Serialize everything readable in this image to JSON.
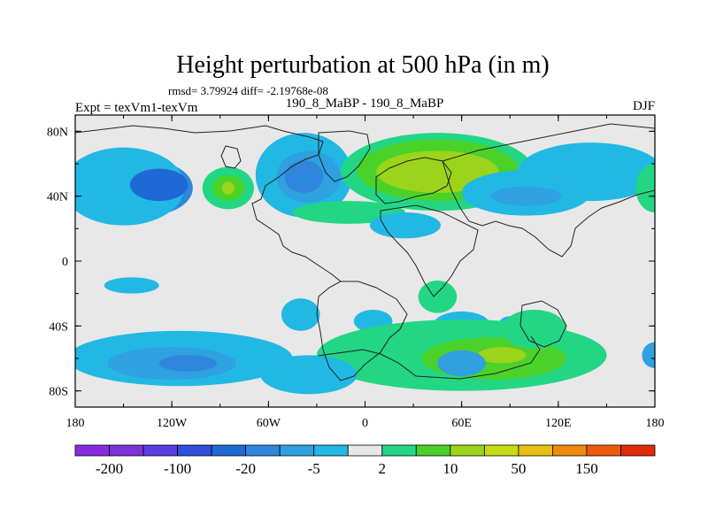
{
  "chart_data": {
    "type": "heatmap",
    "title": "Height perturbation at 500 hPa (in m)",
    "stats_line": "rmsd= 3.79924 diff= -2.19768e-08",
    "left_label": "Expt = texVm1-texVm",
    "center_label": "190_8_MaBP - 190_8_MaBP",
    "right_label": "DJF",
    "x_range": [
      -180,
      180
    ],
    "y_range": [
      -90,
      90
    ],
    "x_ticks": [
      {
        "value": -180,
        "label": "180"
      },
      {
        "value": -120,
        "label": "120W"
      },
      {
        "value": -60,
        "label": "60W"
      },
      {
        "value": 0,
        "label": "0"
      },
      {
        "value": 60,
        "label": "60E"
      },
      {
        "value": 120,
        "label": "120E"
      },
      {
        "value": 180,
        "label": "180"
      }
    ],
    "y_ticks": [
      {
        "value": 80,
        "label": "80N"
      },
      {
        "value": 40,
        "label": "40N"
      },
      {
        "value": 0,
        "label": "0"
      },
      {
        "value": -40,
        "label": "40S"
      },
      {
        "value": -80,
        "label": "80S"
      }
    ],
    "colorbar": {
      "colors": [
        "#8a2be2",
        "#7b32d9",
        "#5a3ce0",
        "#2f4fd8",
        "#1f69d6",
        "#2f86dc",
        "#2fa0e0",
        "#22b8e4",
        "#e8e8e8",
        "#22d684",
        "#4ad12a",
        "#9bd41a",
        "#c8dc16",
        "#e9c013",
        "#ee8a0f",
        "#ee5a0c",
        "#e02a0a"
      ],
      "labels": [
        "-200",
        "-100",
        "-20",
        "-5",
        "2",
        "10",
        "50",
        "150"
      ],
      "label_boundary_index": [
        1,
        3,
        5,
        7,
        9,
        11,
        13,
        15
      ]
    },
    "anomalies": [
      {
        "lon": -135,
        "lat": 45,
        "rlon": 28,
        "rlat": 17,
        "level": 5
      },
      {
        "lon": -150,
        "lat": 46,
        "rlon": 38,
        "rlat": 24,
        "level": 7
      },
      {
        "lon": -128,
        "lat": 47,
        "rlon": 18,
        "rlat": 10,
        "level": 4
      },
      {
        "lon": -85,
        "lat": 45,
        "rlon": 16,
        "rlat": 13,
        "level": 9
      },
      {
        "lon": -85,
        "lat": 45,
        "rlon": 10,
        "rlat": 8,
        "level": 10
      },
      {
        "lon": -85,
        "lat": 45,
        "rlon": 4,
        "rlat": 4,
        "level": 11
      },
      {
        "lon": -38,
        "lat": 53,
        "rlon": 30,
        "rlat": 26,
        "level": 7
      },
      {
        "lon": -35,
        "lat": 52,
        "rlon": 20,
        "rlat": 16,
        "level": 6
      },
      {
        "lon": -38,
        "lat": 52,
        "rlon": 12,
        "rlat": 10,
        "level": 5
      },
      {
        "lon": -10,
        "lat": 30,
        "rlon": 35,
        "rlat": 7,
        "level": 9
      },
      {
        "lon": 45,
        "lat": 55,
        "rlon": 60,
        "rlat": 24,
        "level": 9
      },
      {
        "lon": 45,
        "lat": 56,
        "rlon": 50,
        "rlat": 19,
        "level": 10
      },
      {
        "lon": 45,
        "lat": 55,
        "rlon": 38,
        "rlat": 13,
        "level": 11
      },
      {
        "lon": 140,
        "lat": 55,
        "rlon": 45,
        "rlat": 18,
        "level": 7
      },
      {
        "lon": 100,
        "lat": 42,
        "rlon": 40,
        "rlat": 14,
        "level": 7
      },
      {
        "lon": 100,
        "lat": 40,
        "rlon": 22,
        "rlat": 6,
        "level": 6
      },
      {
        "lon": 25,
        "lat": 22,
        "rlon": 22,
        "rlat": 8,
        "level": 7
      },
      {
        "lon": 180,
        "lat": 45,
        "rlon": 12,
        "rlat": 15,
        "level": 9
      },
      {
        "lon": -145,
        "lat": -15,
        "rlon": 17,
        "rlat": 5,
        "level": 7
      },
      {
        "lon": 45,
        "lat": -22,
        "rlon": 12,
        "rlat": 10,
        "level": 9
      },
      {
        "lon": -40,
        "lat": -33,
        "rlon": 12,
        "rlat": 10,
        "level": 7
      },
      {
        "lon": 5,
        "lat": -37,
        "rlon": 12,
        "rlat": 7,
        "level": 7
      },
      {
        "lon": 60,
        "lat": -40,
        "rlon": 18,
        "rlat": 9,
        "level": 7
      },
      {
        "lon": 90,
        "lat": -39,
        "rlon": 7,
        "rlat": 5,
        "level": 7
      },
      {
        "lon": -115,
        "lat": -60,
        "rlon": 70,
        "rlat": 17,
        "level": 7
      },
      {
        "lon": -120,
        "lat": -63,
        "rlon": 40,
        "rlat": 10,
        "level": 6
      },
      {
        "lon": -110,
        "lat": -63,
        "rlon": 18,
        "rlat": 5,
        "level": 5
      },
      {
        "lon": 60,
        "lat": -58,
        "rlon": 90,
        "rlat": 22,
        "level": 9
      },
      {
        "lon": 80,
        "lat": -60,
        "rlon": 45,
        "rlat": 13,
        "level": 10
      },
      {
        "lon": 85,
        "lat": -58,
        "rlon": 15,
        "rlat": 5,
        "level": 11
      },
      {
        "lon": 60,
        "lat": -63,
        "rlon": 15,
        "rlat": 8,
        "level": 6
      },
      {
        "lon": 105,
        "lat": -42,
        "rlon": 20,
        "rlat": 12,
        "level": 9
      },
      {
        "lon": -35,
        "lat": -70,
        "rlon": 30,
        "rlat": 12,
        "level": 7
      },
      {
        "lon": 180,
        "lat": -58,
        "rlon": 8,
        "rlat": 8,
        "level": 6
      }
    ]
  }
}
